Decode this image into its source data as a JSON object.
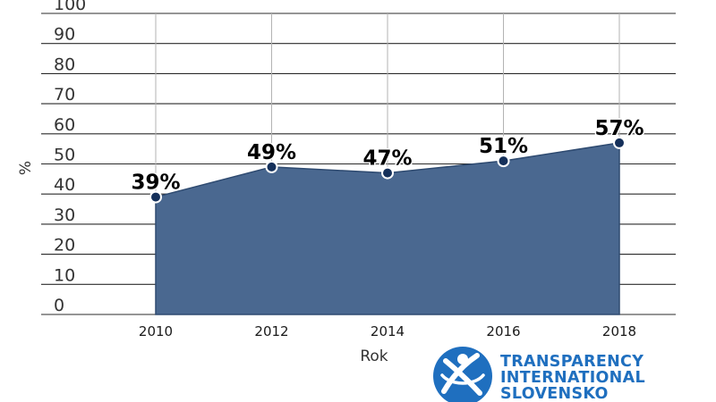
{
  "chart_data": {
    "type": "area",
    "x": [
      "2010",
      "2012",
      "2014",
      "2016",
      "2018"
    ],
    "values": [
      39,
      49,
      47,
      51,
      57
    ],
    "data_labels": [
      "39%",
      "49%",
      "47%",
      "51%",
      "57%"
    ],
    "xlabel": "Rok",
    "ylabel": "%",
    "ylim": [
      0,
      100
    ],
    "yticks": [
      "0",
      "10",
      "20",
      "30",
      "40",
      "50",
      "60",
      "70",
      "80",
      "90",
      "100"
    ],
    "grid": true,
    "legend": "none",
    "area_color": "#4a6890",
    "marker_color": "#15305a"
  },
  "logo": {
    "line1": "TRANSPARENCY",
    "line2": "INTERNATIONAL",
    "line3": "SLOVENSKO",
    "color": "#1f6fbf"
  }
}
